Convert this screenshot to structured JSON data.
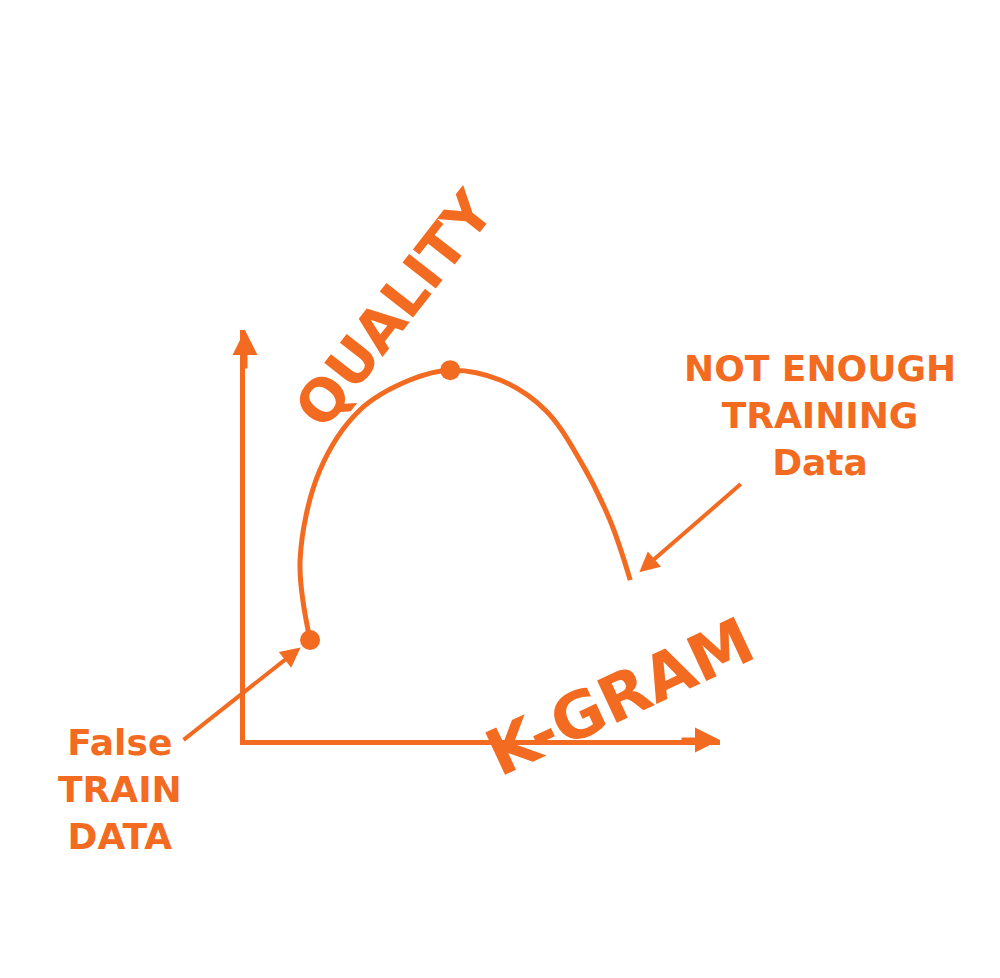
{
  "chart_data": {
    "type": "line",
    "x_label": "K-GRAM",
    "y_label": "QUALITY",
    "x": [
      1.37,
      1.16,
      1.58,
      2.42,
      3.47,
      4.32,
      5.37,
      6.32,
      7.05,
      7.68,
      8.11
    ],
    "values": [
      2.44,
      4.39,
      6.59,
      8.05,
      8.78,
      9.02,
      8.78,
      8.05,
      6.83,
      5.37,
      3.9
    ],
    "color": "#f26b21",
    "line_style": "solid",
    "marker": "circle",
    "points": {
      "x": [
        1.37,
        4.32
      ],
      "values": [
        2.44,
        9.02
      ]
    },
    "annotations": [
      {
        "lines": [
          "False",
          "TRAIN",
          "DATA"
        ],
        "x": 1.37,
        "y": 2.44
      },
      {
        "lines": [
          "NOT ENOUGH",
          "TRAINING",
          "Data"
        ],
        "x": 8.11,
        "y": 3.9
      }
    ],
    "xlim": [
      0,
      10
    ],
    "ylim": [
      0,
      10
    ],
    "tick_labels": false,
    "grid": false
  }
}
